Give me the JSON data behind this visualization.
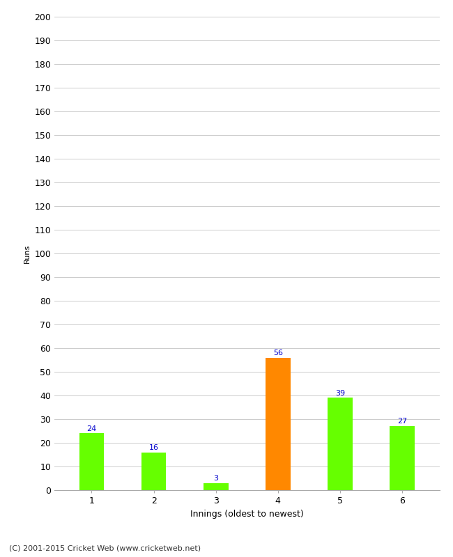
{
  "xlabel": "Innings (oldest to newest)",
  "ylabel": "Runs",
  "categories": [
    "1",
    "2",
    "3",
    "4",
    "5",
    "6"
  ],
  "values": [
    24,
    16,
    3,
    56,
    39,
    27
  ],
  "bar_colors": [
    "#66ff00",
    "#66ff00",
    "#66ff00",
    "#ff8800",
    "#66ff00",
    "#66ff00"
  ],
  "label_color": "#0000cc",
  "ylim": [
    0,
    200
  ],
  "yticks": [
    0,
    10,
    20,
    30,
    40,
    50,
    60,
    70,
    80,
    90,
    100,
    110,
    120,
    130,
    140,
    150,
    160,
    170,
    180,
    190,
    200
  ],
  "background_color": "#ffffff",
  "grid_color": "#cccccc",
  "footer": "(C) 2001-2015 Cricket Web (www.cricketweb.net)",
  "bar_width": 0.4
}
